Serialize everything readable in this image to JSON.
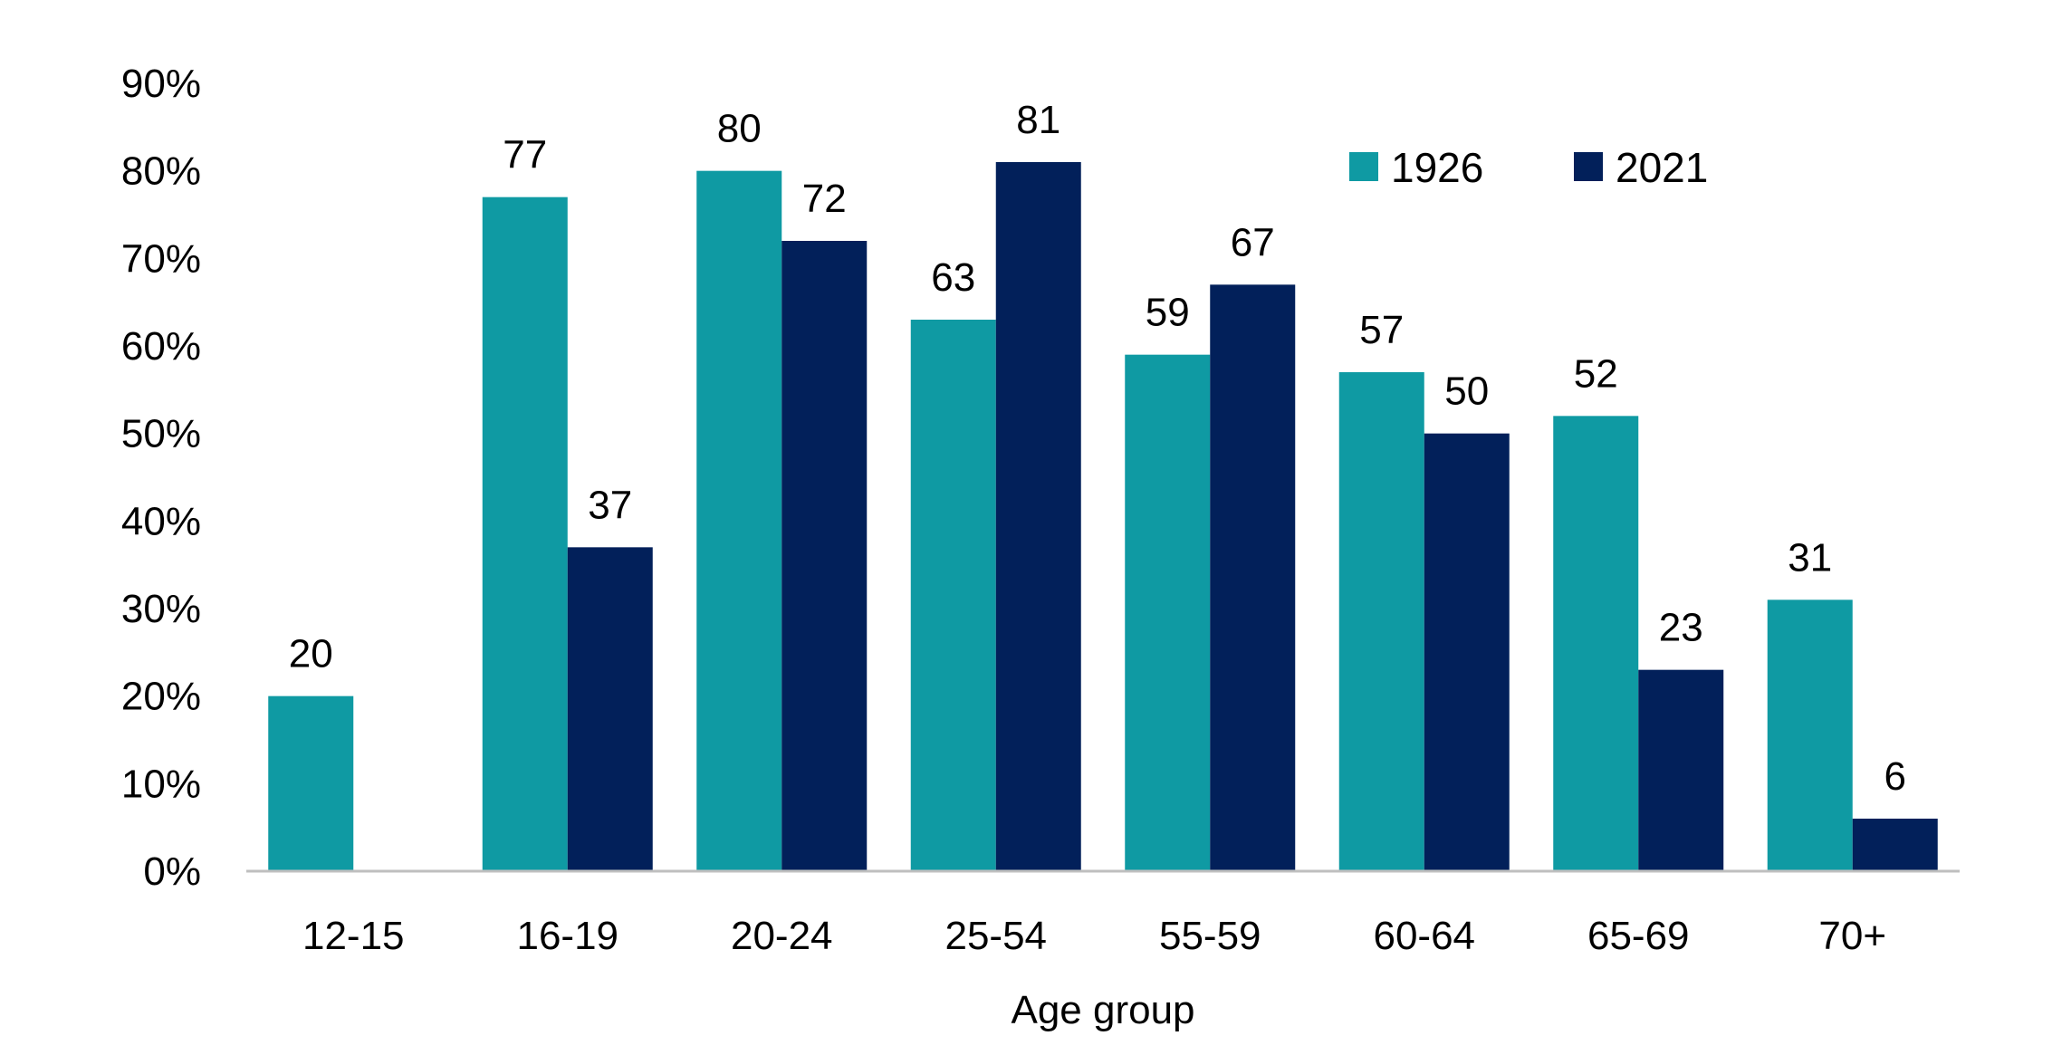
{
  "chart_data": {
    "type": "bar",
    "title": "",
    "xlabel": "Age group",
    "ylabel": "",
    "categories": [
      "12-15",
      "16-19",
      "20-24",
      "25-54",
      "55-59",
      "60-64",
      "65-69",
      "70+"
    ],
    "series": [
      {
        "name": "1926",
        "color": "#0f9aa3",
        "values": [
          20,
          77,
          80,
          63,
          59,
          57,
          52,
          31
        ],
        "labels": [
          "20",
          "77",
          "80",
          "63",
          "59",
          "57",
          "52",
          "31"
        ]
      },
      {
        "name": "2021",
        "color": "#02205a",
        "values": [
          null,
          37,
          72,
          81,
          67,
          50,
          23,
          6
        ],
        "labels": [
          "",
          "37",
          "72",
          "81",
          "67",
          "50",
          "23",
          "6"
        ]
      }
    ],
    "ylim": [
      0,
      90
    ],
    "yticks": [
      0,
      10,
      20,
      30,
      40,
      50,
      60,
      70,
      80,
      90
    ],
    "ytick_labels": [
      "0%",
      "10%",
      "20%",
      "30%",
      "40%",
      "50%",
      "60%",
      "70%",
      "80%",
      "90%"
    ],
    "grid": false,
    "legend_position": "top-right",
    "axis_color": "#bfbfbf"
  }
}
